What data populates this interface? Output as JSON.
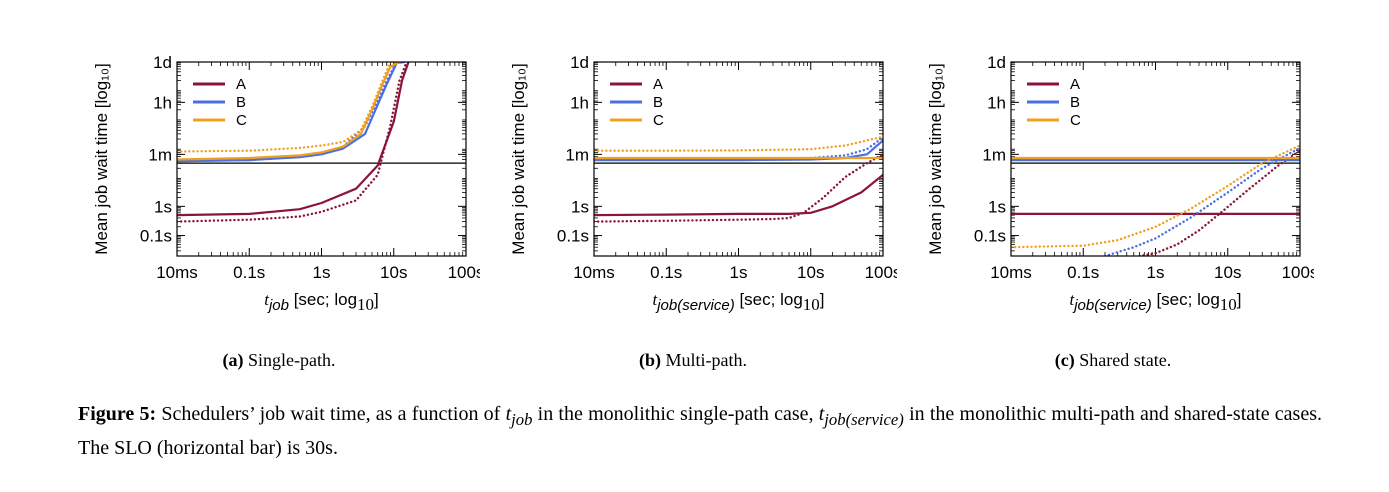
{
  "colors": {
    "A": "#8b1538",
    "B": "#4a6fe3",
    "C": "#f0a020",
    "slo": "#000000"
  },
  "axis": {
    "y_ticks": [
      {
        "label": "0.1s",
        "value": 0.1
      },
      {
        "label": "1s",
        "value": 1
      },
      {
        "label": "1m",
        "value": 60
      },
      {
        "label": "1h",
        "value": 3600
      },
      {
        "label": "1d",
        "value": 86400
      }
    ],
    "x_ticks": [
      {
        "label": "10ms",
        "value": 0.01
      },
      {
        "label": "0.1s",
        "value": 0.1
      },
      {
        "label": "1s",
        "value": 1
      },
      {
        "label": "10s",
        "value": 10
      },
      {
        "label": "100s",
        "value": 100
      }
    ],
    "ylabel": "Mean job wait time [log₁₀]",
    "xlim": [
      0.01,
      100
    ],
    "ylim": [
      0.02,
      86400
    ],
    "log_x": true,
    "log_y": true
  },
  "legend": [
    "A",
    "B",
    "C"
  ],
  "panels": [
    {
      "caption_label": "(a)",
      "caption_text": " Single-path.",
      "xlabel_var": "t",
      "xlabel_sub": "job",
      "xlabel_rest": " [sec; log",
      "xlabel_log": "10",
      "xlabel_end": "]"
    },
    {
      "caption_label": "(b)",
      "caption_text": " Multi-path.",
      "xlabel_var": "t",
      "xlabel_sub": "job(service)",
      "xlabel_rest": " [sec; log",
      "xlabel_log": "10",
      "xlabel_end": "]"
    },
    {
      "caption_label": "(c)",
      "caption_text": " Shared state.",
      "xlabel_var": "t",
      "xlabel_sub": "job(service)",
      "xlabel_rest": " [sec; log",
      "xlabel_log": "10",
      "xlabel_end": "]"
    }
  ],
  "chart_data": [
    {
      "type": "line",
      "title": "(a) Single-path.",
      "xlabel": "t_job [sec; log10]",
      "ylabel": "Mean job wait time [log10]",
      "log_x": true,
      "log_y": true,
      "slo": 30,
      "series": [
        {
          "name": "A",
          "style": "solid",
          "x": [
            0.01,
            0.1,
            0.5,
            1,
            3,
            6,
            10,
            13,
            16
          ],
          "y": [
            0.5,
            0.55,
            0.8,
            1.3,
            4,
            25,
            800,
            20000,
            86400
          ]
        },
        {
          "name": "A",
          "style": "dotted",
          "x": [
            0.01,
            0.1,
            0.5,
            1,
            3,
            6,
            9,
            12,
            15
          ],
          "y": [
            0.3,
            0.35,
            0.45,
            0.65,
            1.6,
            12,
            600,
            20000,
            86400
          ]
        },
        {
          "name": "B",
          "style": "solid",
          "x": [
            0.01,
            0.1,
            0.5,
            1,
            2,
            4,
            6,
            8,
            11,
            14
          ],
          "y": [
            35,
            38,
            48,
            60,
            95,
            300,
            3000,
            15000,
            80000,
            86400
          ]
        },
        {
          "name": "B",
          "style": "dotted",
          "x": [
            0.01,
            0.1,
            0.5,
            1,
            2,
            4,
            6,
            8,
            11,
            14
          ],
          "y": [
            35,
            38,
            50,
            65,
            110,
            550,
            4000,
            20000,
            86400,
            86400
          ]
        },
        {
          "name": "C",
          "style": "solid",
          "x": [
            0.01,
            0.1,
            0.5,
            1,
            2,
            3.5,
            5,
            7,
            9,
            12
          ],
          "y": [
            40,
            45,
            55,
            70,
            110,
            300,
            2000,
            15000,
            60000,
            86400
          ]
        },
        {
          "name": "C",
          "style": "dotted",
          "x": [
            0.01,
            0.1,
            0.5,
            1,
            2,
            3.5,
            5,
            7,
            9,
            12
          ],
          "y": [
            75,
            80,
            100,
            120,
            160,
            400,
            2500,
            20000,
            86400,
            86400
          ]
        }
      ]
    },
    {
      "type": "line",
      "title": "(b) Multi-path.",
      "xlabel": "t_job(service) [sec; log10]",
      "ylabel": "Mean job wait time [log10]",
      "log_x": true,
      "log_y": true,
      "slo": 30,
      "series": [
        {
          "name": "A",
          "style": "solid",
          "x": [
            0.01,
            0.1,
            1,
            5,
            10,
            20,
            50,
            100
          ],
          "y": [
            0.5,
            0.52,
            0.55,
            0.55,
            0.6,
            1,
            3,
            12
          ]
        },
        {
          "name": "A",
          "style": "dotted",
          "x": [
            0.01,
            0.1,
            1,
            3,
            5,
            8,
            15,
            30,
            60,
            100
          ],
          "y": [
            0.3,
            0.32,
            0.35,
            0.37,
            0.4,
            0.6,
            2,
            10,
            30,
            60
          ]
        },
        {
          "name": "B",
          "style": "solid",
          "x": [
            0.01,
            0.1,
            1,
            10,
            30,
            60,
            100
          ],
          "y": [
            38,
            38,
            38,
            40,
            45,
            60,
            180
          ]
        },
        {
          "name": "B",
          "style": "dotted",
          "x": [
            0.01,
            0.1,
            1,
            10,
            30,
            60,
            100
          ],
          "y": [
            40,
            40,
            41,
            45,
            55,
            90,
            230
          ]
        },
        {
          "name": "C",
          "style": "solid",
          "x": [
            0.01,
            0.1,
            1,
            10,
            100
          ],
          "y": [
            45,
            45,
            45,
            45,
            45
          ]
        },
        {
          "name": "C",
          "style": "dotted",
          "x": [
            0.01,
            0.1,
            1,
            10,
            30,
            100
          ],
          "y": [
            80,
            80,
            82,
            90,
            120,
            240
          ]
        }
      ]
    },
    {
      "type": "line",
      "title": "(c) Shared state.",
      "xlabel": "t_job(service) [sec; log10]",
      "ylabel": "Mean job wait time [log10]",
      "log_x": true,
      "log_y": true,
      "slo": 30,
      "series": [
        {
          "name": "A",
          "style": "solid",
          "x": [
            0.01,
            100
          ],
          "y": [
            0.55,
            0.55
          ]
        },
        {
          "name": "A",
          "style": "dotted",
          "x": [
            0.6,
            1,
            2,
            4,
            8,
            20,
            50,
            100
          ],
          "y": [
            0.02,
            0.025,
            0.05,
            0.15,
            0.6,
            4,
            25,
            80
          ]
        },
        {
          "name": "B",
          "style": "solid",
          "x": [
            0.01,
            100
          ],
          "y": [
            38,
            38
          ]
        },
        {
          "name": "B",
          "style": "dotted",
          "x": [
            0.2,
            0.5,
            1,
            3,
            10,
            30,
            100
          ],
          "y": [
            0.02,
            0.04,
            0.08,
            0.4,
            3,
            20,
            100
          ]
        },
        {
          "name": "C",
          "style": "solid",
          "x": [
            0.01,
            100
          ],
          "y": [
            45,
            45
          ]
        },
        {
          "name": "C",
          "style": "dotted",
          "x": [
            0.01,
            0.1,
            0.3,
            1,
            3,
            10,
            30,
            100
          ],
          "y": [
            0.04,
            0.045,
            0.07,
            0.2,
            0.8,
            5,
            30,
            120
          ]
        }
      ]
    }
  ],
  "figure_caption": {
    "label": "Figure 5:",
    "text1": " Schedulers’ job wait time, as a function of ",
    "var1": "t",
    "sub1": "job",
    "text2": " in the monolithic single-path case, ",
    "var2": "t",
    "sub2": "job(service)",
    "text3": " in the monolithic multi-path and shared-state cases. The SLO (horizontal bar) is 30s."
  }
}
